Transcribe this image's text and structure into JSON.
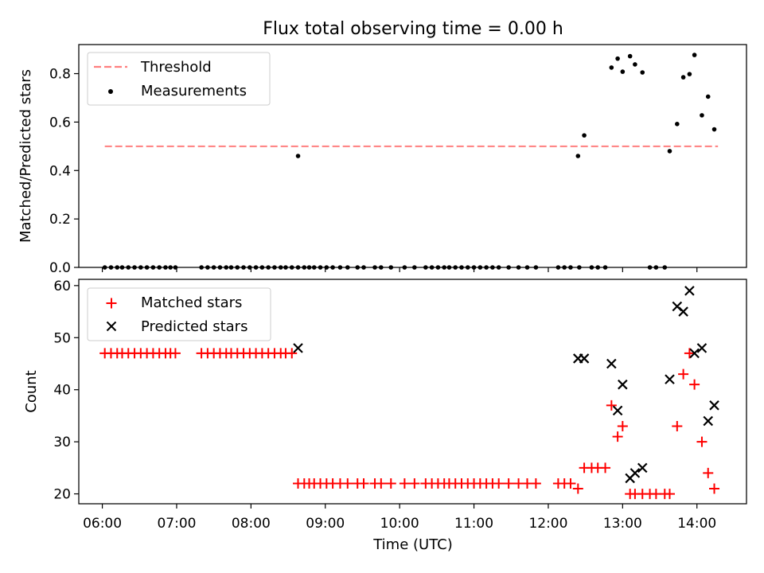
{
  "figure": {
    "title": "Flux total observing time = 0.00 h"
  },
  "chart_data": [
    {
      "type": "scatter",
      "panel": "top",
      "ylabel": "Matched/Predicted stars",
      "xlabel": "",
      "xlim": [
        "05:41",
        "14:40"
      ],
      "ylim": [
        0,
        0.92
      ],
      "yticks": [
        0.0,
        0.2,
        0.4,
        0.6,
        0.8
      ],
      "ytick_labels": [
        "0.0",
        "0.2",
        "0.4",
        "0.6",
        "0.8"
      ],
      "grid": false,
      "legend": {
        "placement": "upper-left",
        "entries": [
          {
            "label": "Threshold",
            "style": "dashed-line",
            "color": "#ff7f7f"
          },
          {
            "label": "Measurements",
            "style": "dot",
            "color": "#000000"
          }
        ]
      },
      "threshold": {
        "name": "Threshold",
        "y": 0.5,
        "x_start": "06:02",
        "x_end": "14:17",
        "color": "#ff7f7f"
      },
      "series": [
        {
          "name": "Measurements",
          "color": "#000000",
          "marker": "dot",
          "points": [
            [
              "06:02",
              0
            ],
            [
              "06:07",
              0
            ],
            [
              "06:12",
              0
            ],
            [
              "06:16",
              0
            ],
            [
              "06:21",
              0
            ],
            [
              "06:26",
              0
            ],
            [
              "06:31",
              0
            ],
            [
              "06:36",
              0
            ],
            [
              "06:41",
              0
            ],
            [
              "06:46",
              0
            ],
            [
              "06:51",
              0
            ],
            [
              "06:55",
              0
            ],
            [
              "06:59",
              0
            ],
            [
              "07:20",
              0
            ],
            [
              "07:25",
              0
            ],
            [
              "07:30",
              0
            ],
            [
              "07:35",
              0
            ],
            [
              "07:40",
              0
            ],
            [
              "07:44",
              0
            ],
            [
              "07:49",
              0
            ],
            [
              "07:54",
              0
            ],
            [
              "07:59",
              0
            ],
            [
              "08:04",
              0
            ],
            [
              "08:09",
              0
            ],
            [
              "08:14",
              0
            ],
            [
              "08:19",
              0
            ],
            [
              "08:24",
              0
            ],
            [
              "08:28",
              0
            ],
            [
              "08:33",
              0
            ],
            [
              "08:38",
              0
            ],
            [
              "08:43",
              0
            ],
            [
              "08:38",
              0.46
            ],
            [
              "08:47",
              0
            ],
            [
              "08:51",
              0
            ],
            [
              "08:56",
              0
            ],
            [
              "09:01",
              0
            ],
            [
              "09:06",
              0
            ],
            [
              "09:12",
              0
            ],
            [
              "09:18",
              0
            ],
            [
              "09:26",
              0
            ],
            [
              "09:31",
              0
            ],
            [
              "09:40",
              0
            ],
            [
              "09:45",
              0
            ],
            [
              "09:53",
              0
            ],
            [
              "10:04",
              0
            ],
            [
              "10:12",
              0
            ],
            [
              "10:21",
              0
            ],
            [
              "10:26",
              0
            ],
            [
              "10:31",
              0
            ],
            [
              "10:36",
              0
            ],
            [
              "10:40",
              0
            ],
            [
              "10:45",
              0
            ],
            [
              "10:50",
              0
            ],
            [
              "10:55",
              0
            ],
            [
              "11:00",
              0
            ],
            [
              "11:05",
              0
            ],
            [
              "11:10",
              0
            ],
            [
              "11:15",
              0
            ],
            [
              "11:20",
              0
            ],
            [
              "11:28",
              0
            ],
            [
              "11:36",
              0
            ],
            [
              "11:43",
              0
            ],
            [
              "11:50",
              0
            ],
            [
              "12:08",
              0
            ],
            [
              "12:13",
              0
            ],
            [
              "12:18",
              0
            ],
            [
              "12:25",
              0
            ],
            [
              "12:35",
              0
            ],
            [
              "12:40",
              0
            ],
            [
              "12:46",
              0
            ],
            [
              "12:24",
              0.46
            ],
            [
              "12:29",
              0.545
            ],
            [
              "12:51",
              0.825
            ],
            [
              "12:56",
              0.862
            ],
            [
              "13:00",
              0.808
            ],
            [
              "13:06",
              0.872
            ],
            [
              "13:10",
              0.838
            ],
            [
              "13:16",
              0.805
            ],
            [
              "13:22",
              0
            ],
            [
              "13:27",
              0
            ],
            [
              "13:34",
              0
            ],
            [
              "13:38",
              0.48
            ],
            [
              "13:44",
              0.592
            ],
            [
              "13:49",
              0.785
            ],
            [
              "13:54",
              0.798
            ],
            [
              "13:58",
              0.877
            ],
            [
              "14:04",
              0.628
            ],
            [
              "14:09",
              0.705
            ],
            [
              "14:14",
              0.57
            ]
          ]
        }
      ]
    },
    {
      "type": "scatter",
      "panel": "bottom",
      "ylabel": "Count",
      "xlabel": "Time (UTC)",
      "xlim": [
        "05:41",
        "14:40"
      ],
      "ylim": [
        18.1,
        61.2
      ],
      "xticks": [
        "06:00",
        "07:00",
        "08:00",
        "09:00",
        "10:00",
        "11:00",
        "12:00",
        "13:00",
        "14:00"
      ],
      "yticks": [
        20,
        30,
        40,
        50,
        60
      ],
      "ytick_labels": [
        "20",
        "30",
        "40",
        "50",
        "60"
      ],
      "grid": false,
      "legend": {
        "placement": "upper-left",
        "entries": [
          {
            "label": "Matched stars",
            "style": "plus",
            "color": "#ff0000"
          },
          {
            "label": "Predicted stars",
            "style": "x",
            "color": "#000000"
          }
        ]
      },
      "series": [
        {
          "name": "Matched stars",
          "color": "#ff0000",
          "marker": "plus",
          "points": [
            [
              "06:02",
              47
            ],
            [
              "06:07",
              47
            ],
            [
              "06:12",
              47
            ],
            [
              "06:16",
              47
            ],
            [
              "06:21",
              47
            ],
            [
              "06:26",
              47
            ],
            [
              "06:31",
              47
            ],
            [
              "06:36",
              47
            ],
            [
              "06:41",
              47
            ],
            [
              "06:46",
              47
            ],
            [
              "06:51",
              47
            ],
            [
              "06:55",
              47
            ],
            [
              "06:59",
              47
            ],
            [
              "07:20",
              47
            ],
            [
              "07:25",
              47
            ],
            [
              "07:30",
              47
            ],
            [
              "07:35",
              47
            ],
            [
              "07:40",
              47
            ],
            [
              "07:44",
              47
            ],
            [
              "07:49",
              47
            ],
            [
              "07:54",
              47
            ],
            [
              "07:59",
              47
            ],
            [
              "08:04",
              47
            ],
            [
              "08:09",
              47
            ],
            [
              "08:14",
              47
            ],
            [
              "08:19",
              47
            ],
            [
              "08:24",
              47
            ],
            [
              "08:28",
              47
            ],
            [
              "08:33",
              47
            ],
            [
              "08:38",
              22
            ],
            [
              "08:43",
              22
            ],
            [
              "08:47",
              22
            ],
            [
              "08:51",
              22
            ],
            [
              "08:56",
              22
            ],
            [
              "09:01",
              22
            ],
            [
              "09:06",
              22
            ],
            [
              "09:12",
              22
            ],
            [
              "09:18",
              22
            ],
            [
              "09:26",
              22
            ],
            [
              "09:31",
              22
            ],
            [
              "09:40",
              22
            ],
            [
              "09:45",
              22
            ],
            [
              "09:53",
              22
            ],
            [
              "10:04",
              22
            ],
            [
              "10:12",
              22
            ],
            [
              "10:21",
              22
            ],
            [
              "10:26",
              22
            ],
            [
              "10:31",
              22
            ],
            [
              "10:36",
              22
            ],
            [
              "10:40",
              22
            ],
            [
              "10:45",
              22
            ],
            [
              "10:50",
              22
            ],
            [
              "10:55",
              22
            ],
            [
              "11:00",
              22
            ],
            [
              "11:05",
              22
            ],
            [
              "11:10",
              22
            ],
            [
              "11:15",
              22
            ],
            [
              "11:20",
              22
            ],
            [
              "11:28",
              22
            ],
            [
              "11:36",
              22
            ],
            [
              "11:43",
              22
            ],
            [
              "11:50",
              22
            ],
            [
              "12:08",
              22
            ],
            [
              "12:13",
              22
            ],
            [
              "12:18",
              22
            ],
            [
              "12:24",
              21
            ],
            [
              "12:29",
              25
            ],
            [
              "12:35",
              25
            ],
            [
              "12:40",
              25
            ],
            [
              "12:46",
              25
            ],
            [
              "12:51",
              37
            ],
            [
              "12:56",
              31
            ],
            [
              "13:00",
              33
            ],
            [
              "13:06",
              20
            ],
            [
              "13:10",
              20
            ],
            [
              "13:16",
              20
            ],
            [
              "13:22",
              20
            ],
            [
              "13:27",
              20
            ],
            [
              "13:34",
              20
            ],
            [
              "13:38",
              20
            ],
            [
              "13:44",
              33
            ],
            [
              "13:49",
              43
            ],
            [
              "13:54",
              47
            ],
            [
              "13:58",
              41
            ],
            [
              "14:04",
              30
            ],
            [
              "14:09",
              24
            ],
            [
              "14:14",
              21
            ]
          ]
        },
        {
          "name": "Predicted stars",
          "color": "#000000",
          "marker": "x",
          "points": [
            [
              "08:38",
              48
            ],
            [
              "12:24",
              46
            ],
            [
              "12:29",
              46
            ],
            [
              "12:51",
              45
            ],
            [
              "12:56",
              36
            ],
            [
              "13:00",
              41
            ],
            [
              "13:06",
              23
            ],
            [
              "13:10",
              24
            ],
            [
              "13:16",
              25
            ],
            [
              "13:38",
              42
            ],
            [
              "13:44",
              56
            ],
            [
              "13:49",
              55
            ],
            [
              "13:54",
              59
            ],
            [
              "13:58",
              47
            ],
            [
              "14:04",
              48
            ],
            [
              "14:09",
              34
            ],
            [
              "14:14",
              37
            ]
          ]
        }
      ]
    }
  ]
}
